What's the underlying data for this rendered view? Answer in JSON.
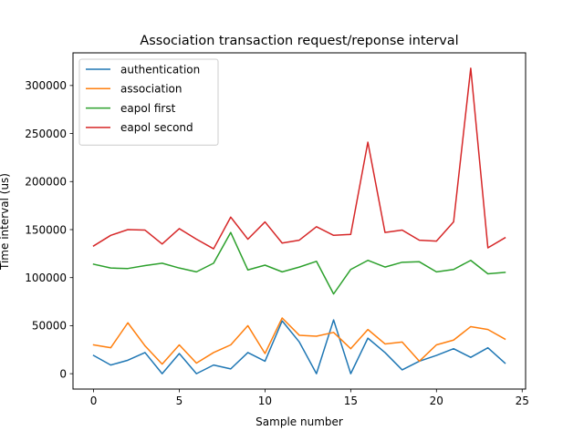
{
  "chart_data": {
    "type": "line",
    "title": "Association transaction request/reponse interval",
    "xlabel": "Sample number",
    "ylabel": "Time interval (us)",
    "xlim": [
      -1.2,
      25.2
    ],
    "ylim": [
      -16000,
      334000
    ],
    "xticks": [
      0,
      5,
      10,
      15,
      20,
      25
    ],
    "yticks": [
      0,
      50000,
      100000,
      150000,
      200000,
      250000,
      300000
    ],
    "grid": false,
    "legend_position": "upper left",
    "x": [
      0,
      1,
      2,
      3,
      4,
      5,
      6,
      7,
      8,
      9,
      10,
      11,
      12,
      13,
      14,
      15,
      16,
      17,
      18,
      19,
      20,
      21,
      22,
      23,
      24
    ],
    "series": [
      {
        "name": "authentication",
        "color": "#1f77b4",
        "values": [
          19000,
          9000,
          14000,
          22000,
          0,
          21000,
          0,
          9000,
          5000,
          22000,
          13000,
          55000,
          33000,
          0,
          56000,
          0,
          37000,
          22000,
          4000,
          13000,
          19000,
          26000,
          17000,
          27000,
          11000
        ]
      },
      {
        "name": "association",
        "color": "#ff7f0e",
        "values": [
          30000,
          27000,
          53000,
          29000,
          10000,
          30000,
          11000,
          22000,
          30000,
          50000,
          21000,
          58000,
          40000,
          39000,
          43000,
          26000,
          46000,
          31000,
          33000,
          13000,
          30000,
          35000,
          49000,
          46000,
          36000
        ]
      },
      {
        "name": "eapol first",
        "color": "#2ca02c",
        "values": [
          114000,
          110000,
          109500,
          112500,
          115000,
          110000,
          106000,
          115000,
          147000,
          108000,
          113000,
          106000,
          111000,
          117000,
          83000,
          108500,
          118000,
          111000,
          116000,
          116500,
          106000,
          108500,
          118000,
          104000,
          105500
        ]
      },
      {
        "name": "eapol second",
        "color": "#d62728",
        "values": [
          133000,
          144000,
          150000,
          149500,
          135000,
          151000,
          140000,
          130000,
          163000,
          140000,
          158000,
          136000,
          139000,
          153000,
          144000,
          145000,
          241000,
          147000,
          149500,
          139000,
          138000,
          158000,
          318000,
          131000,
          141500
        ]
      }
    ]
  }
}
